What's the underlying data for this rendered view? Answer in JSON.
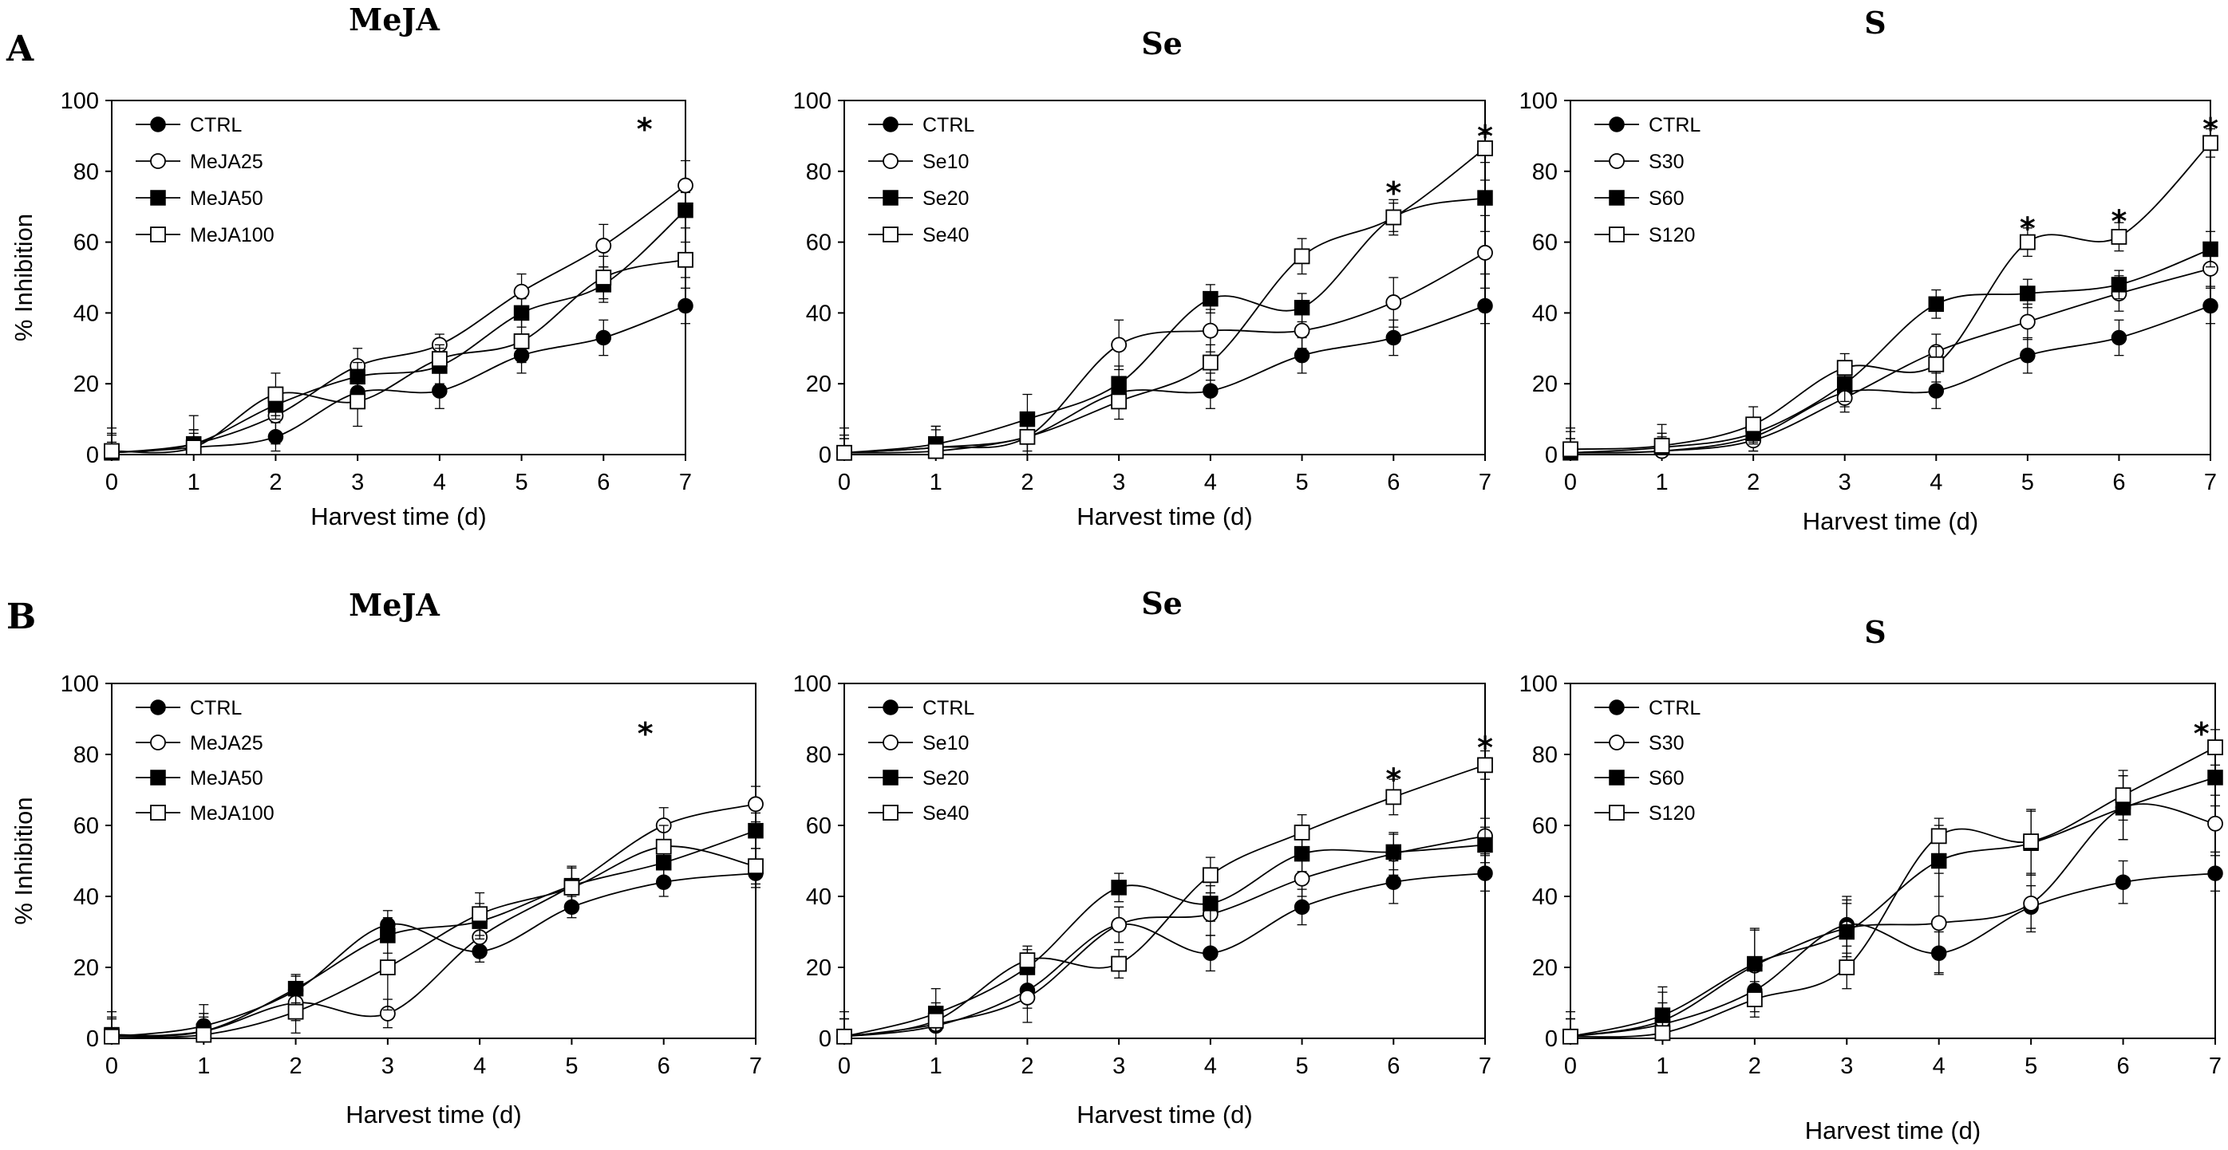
{
  "panel_letters": [
    "A",
    "B"
  ],
  "chart_data": [
    {
      "type": "line",
      "title": "MeJA",
      "xlabel": "Harvest time (d)",
      "ylabel": "% Inhibition",
      "x": [
        0,
        1,
        2,
        3,
        4,
        5,
        6,
        7
      ],
      "xticks": [
        "0",
        "1",
        "2",
        "3",
        "4",
        "5",
        "6",
        "7"
      ],
      "ylim": [
        0,
        100
      ],
      "yticks": [
        "0",
        "20",
        "40",
        "60",
        "80",
        "100"
      ],
      "series": [
        {
          "name": "CTRL",
          "marker": "filled-circle",
          "values": [
            0.5,
            2,
            5,
            17.5,
            18,
            28,
            33,
            42
          ],
          "errors": [
            7,
            5,
            4,
            4,
            5,
            5,
            5,
            5
          ]
        },
        {
          "name": "MeJA25",
          "marker": "open-circle",
          "values": [
            0.5,
            3,
            11,
            25,
            31,
            46,
            59,
            76
          ],
          "errors": [
            5,
            8,
            8,
            5,
            3,
            5,
            6,
            7
          ]
        },
        {
          "name": "MeJA50",
          "marker": "filled-square",
          "values": [
            0.5,
            3,
            14,
            22,
            25,
            40,
            48,
            69
          ],
          "errors": [
            3,
            4,
            4,
            4,
            5,
            4,
            5,
            5
          ]
        },
        {
          "name": "MeJA100",
          "marker": "open-square",
          "values": [
            1,
            2,
            17,
            15,
            27,
            32,
            50,
            55
          ],
          "errors": [
            5,
            4,
            6,
            7,
            4,
            6,
            6,
            5
          ]
        }
      ],
      "annotations": [
        {
          "text": "*",
          "x": 6.5,
          "y": 93
        }
      ]
    },
    {
      "type": "line",
      "title": "Se",
      "xlabel": "Harvest time (d)",
      "ylabel": "",
      "x": [
        0,
        1,
        2,
        3,
        4,
        5,
        6,
        7
      ],
      "xticks": [
        "0",
        "1",
        "2",
        "3",
        "4",
        "5",
        "6",
        "7"
      ],
      "ylim": [
        0,
        100
      ],
      "yticks": [
        "0",
        "20",
        "40",
        "60",
        "80",
        "100"
      ],
      "series": [
        {
          "name": "CTRL",
          "marker": "filled-circle",
          "values": [
            0.5,
            2,
            5,
            17.5,
            18,
            28,
            33,
            42
          ],
          "errors": [
            7,
            5,
            4,
            4,
            5,
            5,
            5,
            5
          ]
        },
        {
          "name": "Se10",
          "marker": "open-circle",
          "values": [
            0.5,
            2,
            5,
            31,
            35,
            35,
            43,
            57
          ],
          "errors": [
            5,
            6,
            5,
            7,
            6,
            5,
            7,
            6
          ]
        },
        {
          "name": "Se20",
          "marker": "filled-square",
          "values": [
            0.5,
            3,
            10,
            20,
            44,
            41.5,
            67,
            72.5
          ],
          "errors": [
            4,
            5,
            7,
            5,
            4,
            4,
            4,
            5
          ]
        },
        {
          "name": "Se40",
          "marker": "open-square",
          "values": [
            0.5,
            1,
            5,
            15,
            26,
            56,
            67,
            86.5
          ],
          "errors": [
            4,
            4,
            5,
            5,
            5,
            5,
            5,
            4
          ]
        }
      ],
      "annotations": [
        {
          "text": "*",
          "x": 6,
          "y": 75
        },
        {
          "text": "*",
          "x": 7,
          "y": 91
        }
      ]
    },
    {
      "type": "line",
      "title": "S",
      "xlabel": "Harvest time (d)",
      "ylabel": "",
      "x": [
        0,
        1,
        2,
        3,
        4,
        5,
        6,
        7
      ],
      "xticks": [
        "0",
        "1",
        "2",
        "3",
        "4",
        "5",
        "6",
        "7"
      ],
      "ylim": [
        0,
        100
      ],
      "yticks": [
        "0",
        "20",
        "40",
        "60",
        "80",
        "100"
      ],
      "series": [
        {
          "name": "CTRL",
          "marker": "filled-circle",
          "values": [
            0.5,
            1,
            5,
            17.5,
            18,
            28,
            33,
            42
          ],
          "errors": [
            7,
            5,
            4,
            4,
            5,
            5,
            5,
            5
          ]
        },
        {
          "name": "S30",
          "marker": "open-circle",
          "values": [
            0.5,
            1,
            4,
            16,
            29,
            37.5,
            45.5,
            52.5
          ],
          "errors": [
            4,
            4,
            3,
            4,
            5,
            5,
            5,
            5
          ]
        },
        {
          "name": "S60",
          "marker": "filled-square",
          "values": [
            0.5,
            2,
            6,
            20,
            42.5,
            45.5,
            48,
            58
          ],
          "errors": [
            4,
            4,
            3,
            5,
            4,
            4,
            4,
            5
          ]
        },
        {
          "name": "S120",
          "marker": "open-square",
          "values": [
            1.5,
            2.5,
            8.5,
            24.5,
            25.5,
            60,
            61.5,
            88
          ],
          "errors": [
            5,
            6,
            5,
            4,
            5,
            4,
            4,
            4
          ]
        }
      ],
      "annotations": [
        {
          "text": "*",
          "x": 5,
          "y": 65
        },
        {
          "text": "*",
          "x": 6,
          "y": 67
        },
        {
          "text": "*",
          "x": 7,
          "y": 93
        }
      ]
    },
    {
      "type": "line",
      "title": "MeJA",
      "xlabel": "Harvest time (d)",
      "ylabel": "% Inhibition",
      "x": [
        0,
        1,
        2,
        3,
        4,
        5,
        6,
        7
      ],
      "xticks": [
        "0",
        "1",
        "2",
        "3",
        "4",
        "5",
        "6",
        "7"
      ],
      "ylim": [
        0,
        100
      ],
      "yticks": [
        "0",
        "20",
        "40",
        "60",
        "80",
        "100"
      ],
      "series": [
        {
          "name": "CTRL",
          "marker": "filled-circle",
          "values": [
            0.5,
            3.5,
            13.5,
            32,
            24.5,
            37,
            44,
            46.5
          ],
          "errors": [
            7,
            6,
            4,
            4,
            3,
            3,
            4,
            4
          ]
        },
        {
          "name": "MeJA25",
          "marker": "open-circle",
          "values": [
            0.5,
            2,
            10,
            7,
            28.5,
            43,
            60,
            66
          ],
          "errors": [
            5,
            5,
            5,
            4,
            5,
            5,
            5,
            5
          ]
        },
        {
          "name": "MeJA50",
          "marker": "filled-square",
          "values": [
            1,
            2,
            14,
            29,
            33,
            43,
            49.5,
            58.5
          ],
          "errors": [
            5,
            5,
            4,
            5,
            5,
            5,
            5,
            5
          ]
        },
        {
          "name": "MeJA100",
          "marker": "open-square",
          "values": [
            0.5,
            1,
            7.5,
            20,
            35,
            42.5,
            54,
            48.5
          ],
          "errors": [
            5,
            5,
            6,
            12,
            6,
            6,
            6,
            5
          ]
        }
      ],
      "annotations": [
        {
          "text": "*",
          "x": 5.8,
          "y": 87
        }
      ]
    },
    {
      "type": "line",
      "title": "Se",
      "xlabel": "Harvest time (d)",
      "ylabel": "",
      "x": [
        0,
        1,
        2,
        3,
        4,
        5,
        6,
        7
      ],
      "xticks": [
        "0",
        "1",
        "2",
        "3",
        "4",
        "5",
        "6",
        "7"
      ],
      "ylim": [
        0,
        100
      ],
      "yticks": [
        "0",
        "20",
        "40",
        "60",
        "80",
        "100"
      ],
      "series": [
        {
          "name": "CTRL",
          "marker": "filled-circle",
          "values": [
            0.5,
            3.5,
            13.5,
            32,
            24,
            37,
            44,
            46.5
          ],
          "errors": [
            7,
            5,
            5,
            5,
            5,
            5,
            6,
            5
          ]
        },
        {
          "name": "Se10",
          "marker": "open-circle",
          "values": [
            0.5,
            4,
            11.5,
            32,
            35,
            45,
            52,
            57
          ],
          "errors": [
            5,
            5,
            7,
            5,
            6,
            5,
            6,
            5
          ]
        },
        {
          "name": "Se20",
          "marker": "filled-square",
          "values": [
            0.5,
            7,
            20,
            42.5,
            38,
            52,
            52.5,
            54.5
          ],
          "errors": [
            5,
            7,
            5,
            4,
            5,
            5,
            5,
            5
          ]
        },
        {
          "name": "Se40",
          "marker": "open-square",
          "values": [
            0.5,
            5,
            22,
            21,
            46,
            58,
            68,
            77
          ],
          "errors": [
            5,
            5,
            4,
            4,
            5,
            5,
            5,
            4
          ]
        }
      ],
      "annotations": [
        {
          "text": "*",
          "x": 6,
          "y": 74
        },
        {
          "text": "*",
          "x": 7,
          "y": 83
        }
      ]
    },
    {
      "type": "line",
      "title": "S",
      "xlabel": "Harvest time (d)",
      "ylabel": "",
      "x": [
        0,
        1,
        2,
        3,
        4,
        5,
        6,
        7
      ],
      "xticks": [
        "0",
        "1",
        "2",
        "3",
        "4",
        "5",
        "6",
        "7"
      ],
      "ylim": [
        0,
        100
      ],
      "yticks": [
        "0",
        "20",
        "40",
        "60",
        "80",
        "100"
      ],
      "series": [
        {
          "name": "CTRL",
          "marker": "filled-circle",
          "values": [
            0.5,
            4,
            13.5,
            32,
            24,
            37,
            44,
            46.5
          ],
          "errors": [
            7,
            6,
            6,
            8,
            6,
            6,
            6,
            5
          ]
        },
        {
          "name": "S30",
          "marker": "open-circle",
          "values": [
            0.5,
            5,
            20.5,
            31,
            32.5,
            38,
            65,
            60.5
          ],
          "errors": [
            5,
            8,
            10,
            8,
            14,
            8,
            9,
            8
          ]
        },
        {
          "name": "S60",
          "marker": "filled-square",
          "values": [
            0.5,
            6.5,
            21,
            30,
            50,
            55,
            65,
            73.5
          ],
          "errors": [
            5,
            8,
            10,
            8,
            10,
            9,
            9,
            8
          ]
        },
        {
          "name": "S120",
          "marker": "open-square",
          "values": [
            0.5,
            1.5,
            11,
            20,
            57,
            55.5,
            68.5,
            82
          ],
          "errors": [
            5,
            7,
            5,
            6,
            5,
            9,
            7,
            5
          ]
        }
      ],
      "annotations": [
        {
          "text": "*",
          "x": 6.85,
          "y": 87
        }
      ]
    }
  ]
}
